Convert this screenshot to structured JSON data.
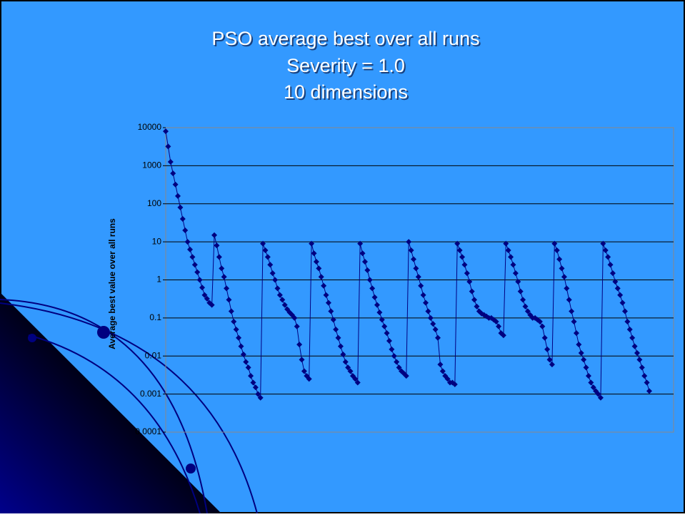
{
  "chart_data": {
    "type": "line",
    "title": "PSO average best over all runs",
    "subtitle": [
      "Severity = 1.0",
      "10 dimensions"
    ],
    "y_label": "Average best value over all runs",
    "log_y": true,
    "ylim": [
      0.0001,
      10000
    ],
    "yticks": [
      10000,
      1000,
      100,
      10,
      1,
      0.1,
      0.01,
      0.001,
      0.0001
    ],
    "grid": true,
    "color": "#000080",
    "values": [
      8000,
      3200,
      1260,
      630,
      320,
      160,
      80,
      40,
      20,
      10,
      6.3,
      4,
      2.5,
      1.6,
      1,
      0.63,
      0.4,
      0.32,
      0.25,
      0.22,
      15,
      8,
      4,
      2,
      1.2,
      0.6,
      0.3,
      0.15,
      0.08,
      0.05,
      0.03,
      0.018,
      0.011,
      0.007,
      0.005,
      0.003,
      0.002,
      0.0015,
      0.001,
      0.0008,
      9,
      6,
      4,
      2.5,
      1.5,
      1,
      0.6,
      0.4,
      0.3,
      0.22,
      0.17,
      0.14,
      0.12,
      0.1,
      0.06,
      0.02,
      0.008,
      0.004,
      0.003,
      0.0025,
      9,
      5,
      3,
      2,
      1.2,
      0.7,
      0.4,
      0.25,
      0.15,
      0.09,
      0.05,
      0.03,
      0.018,
      0.011,
      0.007,
      0.005,
      0.004,
      0.003,
      0.0025,
      0.002,
      9,
      5,
      3,
      1.8,
      1,
      0.6,
      0.35,
      0.22,
      0.14,
      0.09,
      0.06,
      0.04,
      0.025,
      0.015,
      0.01,
      0.007,
      0.005,
      0.004,
      0.0035,
      0.003,
      10,
      6,
      3.5,
      2,
      1.2,
      0.7,
      0.4,
      0.25,
      0.15,
      0.1,
      0.07,
      0.05,
      0.03,
      0.006,
      0.004,
      0.003,
      0.0025,
      0.002,
      0.002,
      0.0018,
      9,
      6,
      4,
      2.5,
      1.5,
      0.9,
      0.5,
      0.3,
      0.2,
      0.15,
      0.13,
      0.12,
      0.11,
      0.1,
      0.1,
      0.09,
      0.08,
      0.06,
      0.04,
      0.035,
      9,
      6,
      4,
      2.5,
      1.5,
      0.9,
      0.5,
      0.3,
      0.2,
      0.15,
      0.12,
      0.1,
      0.1,
      0.09,
      0.08,
      0.06,
      0.03,
      0.015,
      0.008,
      0.006,
      9,
      6,
      3.5,
      2,
      1.2,
      0.6,
      0.3,
      0.15,
      0.08,
      0.04,
      0.02,
      0.012,
      0.008,
      0.005,
      0.003,
      0.002,
      0.0015,
      0.0012,
      0.001,
      0.0008,
      9,
      6,
      4,
      2.5,
      1.5,
      0.9,
      0.6,
      0.4,
      0.25,
      0.15,
      0.08,
      0.05,
      0.03,
      0.018,
      0.012,
      0.008,
      0.005,
      0.003,
      0.002,
      0.0012
    ]
  }
}
